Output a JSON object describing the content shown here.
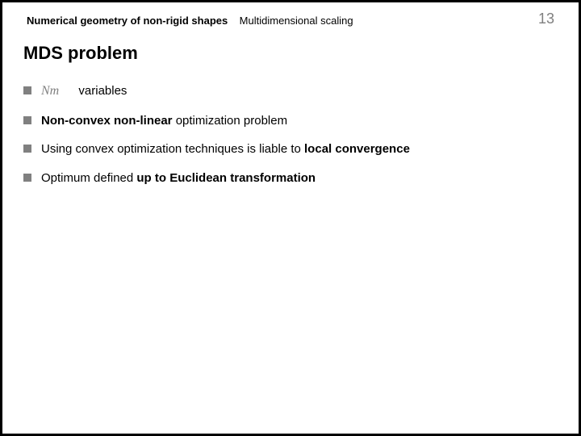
{
  "header": {
    "line1": "Numerical geometry of non-rigid shapes",
    "line2": "Multidimensional scaling",
    "pageNumber": "13"
  },
  "title": "MDS problem",
  "bullets": {
    "b1": {
      "mathPrefix": "Nm",
      "text": "variables"
    },
    "b2": {
      "bold1": "Non-convex non-linear",
      "text1": " optimization problem"
    },
    "b3": {
      "text1": "Using convex optimization techniques is liable to ",
      "bold1": "local convergence"
    },
    "b4": {
      "text1": "Optimum defined ",
      "bold1": "up to Euclidean transformation"
    }
  },
  "colors": {
    "background": "#000000",
    "slide": "#ffffff",
    "text": "#000000",
    "bullet": "#808080",
    "pageNum": "#7f7f7f",
    "math": "#808080"
  }
}
